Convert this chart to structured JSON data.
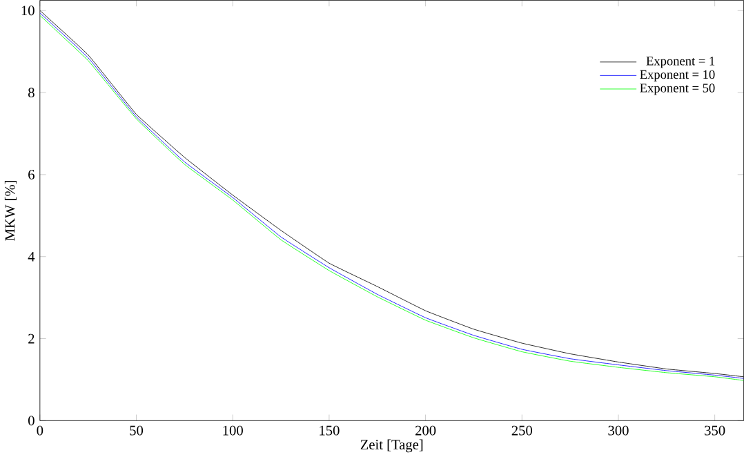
{
  "chart_data": {
    "type": "line",
    "xlabel": "Zeit [Tage]",
    "ylabel": "MKW [%]",
    "xlim": [
      0,
      365
    ],
    "ylim": [
      0,
      10.25
    ],
    "xticks": [
      0,
      50,
      100,
      150,
      200,
      250,
      300,
      350
    ],
    "yticks": [
      0,
      2,
      4,
      6,
      8,
      10
    ],
    "grid": false,
    "legend": "top right",
    "line_style": "solid",
    "marker": "none",
    "x": [
      0,
      25,
      50,
      75,
      100,
      125,
      150,
      175,
      200,
      225,
      250,
      275,
      300,
      325,
      350,
      365
    ],
    "series": [
      {
        "name": "Exponent = 1",
        "color": "#000000",
        "values": [
          10.0,
          8.92,
          7.47,
          6.42,
          5.5,
          4.64,
          3.84,
          3.27,
          2.68,
          2.23,
          1.89,
          1.63,
          1.43,
          1.26,
          1.15,
          1.07
        ]
      },
      {
        "name": "Exponent = 10",
        "color": "#0000ff",
        "values": [
          9.94,
          8.85,
          7.41,
          6.31,
          5.44,
          4.48,
          3.73,
          3.08,
          2.51,
          2.08,
          1.74,
          1.51,
          1.36,
          1.22,
          1.11,
          1.03
        ]
      },
      {
        "name": "Exponent = 50",
        "color": "#00ff00",
        "values": [
          9.88,
          8.78,
          7.36,
          6.25,
          5.38,
          4.41,
          3.66,
          3.02,
          2.45,
          2.02,
          1.68,
          1.45,
          1.3,
          1.17,
          1.07,
          0.98
        ]
      }
    ]
  }
}
